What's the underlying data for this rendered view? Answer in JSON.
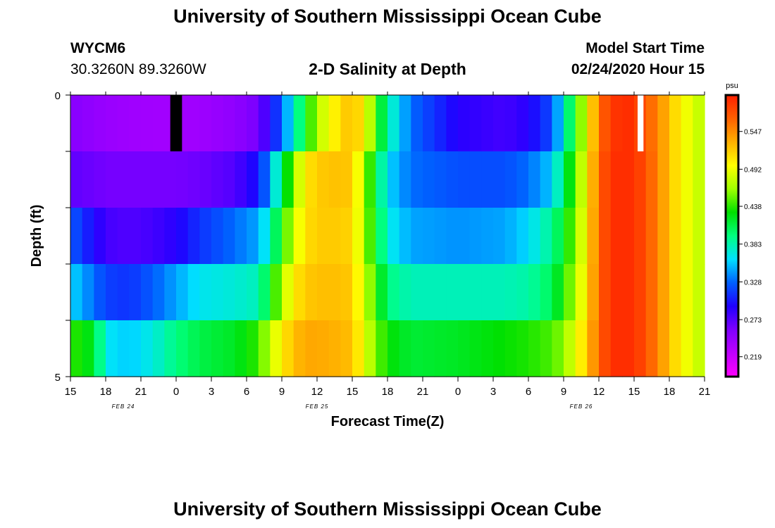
{
  "header": {
    "title": "University of Southern Mississippi Ocean Cube",
    "station": "WYCM6",
    "coords": "30.3260N 89.3260W",
    "plot_title": "2-D Salinity at Depth",
    "model_start_label": "Model Start Time",
    "model_start_value": "02/24/2020 Hour 15"
  },
  "footer": {
    "title": "University of Southern Mississippi Ocean Cube"
  },
  "chart_data": {
    "type": "heatmap",
    "title": "2-D Salinity at Depth",
    "xlabel": "Forecast Time(Z)",
    "ylabel": "Depth (ft)",
    "xlim": [
      0,
      54
    ],
    "ylim": [
      0,
      5
    ],
    "x_tick_labels": [
      "15",
      "18",
      "21",
      "0",
      "3",
      "6",
      "9",
      "12",
      "15",
      "18",
      "21",
      "0",
      "3",
      "6",
      "9",
      "12",
      "15",
      "18",
      "21"
    ],
    "date_labels": [
      {
        "text": "FEB 24",
        "hour": 4.5
      },
      {
        "text": "FEB 25",
        "hour": 21
      },
      {
        "text": "FEB 26",
        "hour": 43.5
      }
    ],
    "y_tick_labels": [
      "0",
      "5"
    ],
    "depth_layers": [
      0.5,
      1.5,
      2.5,
      3.5,
      4.5
    ],
    "anchor_hours": [
      0,
      2,
      3,
      5,
      7,
      9,
      11,
      14,
      16,
      17,
      18,
      19,
      20,
      21,
      23,
      24,
      25,
      26,
      27,
      29,
      33,
      37,
      39,
      41,
      42,
      43,
      44,
      45,
      46,
      47,
      48,
      49,
      50,
      52,
      54
    ],
    "values": [
      [
        0.255,
        0.248,
        0.245,
        0.242,
        0.24,
        0.24,
        0.242,
        0.25,
        0.262,
        0.29,
        0.33,
        0.37,
        0.42,
        0.47,
        0.515,
        0.525,
        0.505,
        0.44,
        0.385,
        0.33,
        0.29,
        0.28,
        0.29,
        0.32,
        0.37,
        0.43,
        0.49,
        0.56,
        0.585,
        0.595,
        0.59,
        0.57,
        0.55,
        0.5,
        0.47
      ],
      [
        0.27,
        0.265,
        0.262,
        0.262,
        0.262,
        0.262,
        0.265,
        0.275,
        0.3,
        0.345,
        0.4,
        0.46,
        0.505,
        0.52,
        0.525,
        0.52,
        0.47,
        0.41,
        0.36,
        0.33,
        0.32,
        0.32,
        0.33,
        0.355,
        0.4,
        0.45,
        0.5,
        0.565,
        0.59,
        0.595,
        0.59,
        0.575,
        0.55,
        0.5,
        0.47
      ],
      [
        0.325,
        0.295,
        0.28,
        0.275,
        0.28,
        0.29,
        0.31,
        0.33,
        0.345,
        0.38,
        0.43,
        0.48,
        0.51,
        0.52,
        0.52,
        0.515,
        0.47,
        0.42,
        0.37,
        0.345,
        0.34,
        0.345,
        0.36,
        0.39,
        0.42,
        0.46,
        0.505,
        0.565,
        0.59,
        0.595,
        0.59,
        0.575,
        0.55,
        0.5,
        0.47
      ],
      [
        0.36,
        0.33,
        0.315,
        0.31,
        0.325,
        0.345,
        0.365,
        0.372,
        0.38,
        0.42,
        0.47,
        0.505,
        0.52,
        0.525,
        0.525,
        0.52,
        0.48,
        0.44,
        0.395,
        0.38,
        0.38,
        0.38,
        0.385,
        0.405,
        0.435,
        0.47,
        0.51,
        0.565,
        0.59,
        0.595,
        0.59,
        0.575,
        0.55,
        0.5,
        0.47
      ],
      [
        0.44,
        0.42,
        0.365,
        0.355,
        0.37,
        0.395,
        0.41,
        0.42,
        0.44,
        0.475,
        0.505,
        0.525,
        0.535,
        0.535,
        0.53,
        0.525,
        0.49,
        0.455,
        0.43,
        0.415,
        0.42,
        0.43,
        0.435,
        0.445,
        0.46,
        0.49,
        0.52,
        0.565,
        0.59,
        0.595,
        0.59,
        0.575,
        0.55,
        0.5,
        0.47
      ]
    ],
    "missing_cells": [
      {
        "layer": 0,
        "from_hour": 8.5,
        "to_hour": 9.5,
        "color": "#000000"
      },
      {
        "layer": 0,
        "from_hour": 48.3,
        "to_hour": 48.8,
        "color": "#ffffff"
      }
    ],
    "colorbar": {
      "unit": "psu",
      "min": 0.19,
      "max": 0.6,
      "tick_labels": [
        "0.547",
        "0.492",
        "0.438",
        "0.383",
        "0.328",
        "0.273",
        "0.219"
      ],
      "colors": [
        "#ff00ff",
        "#c000ff",
        "#8000ff",
        "#2000ff",
        "#0060ff",
        "#00e0ff",
        "#00ff80",
        "#00e000",
        "#a0ff00",
        "#ffff00",
        "#ffb000",
        "#ff6000",
        "#ff2000"
      ]
    }
  }
}
